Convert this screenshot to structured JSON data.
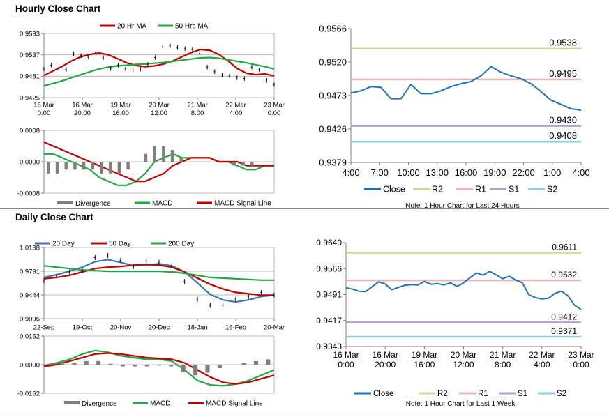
{
  "sections": {
    "hourly_title": "Hourly Close Chart",
    "daily_title": "Daily Close Chart"
  },
  "colors": {
    "ma_short": "#c00000",
    "ma_long": "#21a845",
    "ma_blue": "#3e73b8",
    "close": "#1f72b8",
    "r2": "#c5dc94",
    "r1": "#e9b5b3",
    "s1": "#b1a0c7",
    "s2": "#93cddd",
    "divergence": "#7f7f7f",
    "grid": "#a6a6a6"
  },
  "chart_data": [
    {
      "id": "hourly-price",
      "type": "line",
      "ylim": [
        0.9425,
        0.9593
      ],
      "yticks": [
        "0.9593",
        "0.9537",
        "0.9481",
        "0.9425"
      ],
      "xticks": [
        [
          "16 Mar",
          "0:00"
        ],
        [
          "16 Mar",
          "20:00"
        ],
        [
          "19 Mar",
          "16:00"
        ],
        [
          "20 Mar",
          "12:00"
        ],
        [
          "21 Mar",
          "8:00"
        ],
        [
          "22 Mar",
          "4:00"
        ],
        [
          "23 Mar",
          "0:00"
        ]
      ],
      "legend": [
        "20 Hr MA",
        "50 Hrs MA"
      ],
      "series": [
        {
          "name": "20 Hr MA",
          "color": "ma_short",
          "values": [
            0.9483,
            0.9495,
            0.9507,
            0.9521,
            0.9532,
            0.9538,
            0.9542,
            0.9537,
            0.9527,
            0.9516,
            0.9509,
            0.9506,
            0.9508,
            0.9513,
            0.9521,
            0.9532,
            0.9543,
            0.9551,
            0.9549,
            0.9538,
            0.9521,
            0.9501,
            0.9489,
            0.9485,
            0.9487,
            0.9482
          ]
        },
        {
          "name": "50 Hrs MA",
          "color": "ma_long",
          "values": [
            0.9456,
            0.9462,
            0.9469,
            0.9477,
            0.9485,
            0.9493,
            0.95,
            0.9505,
            0.9508,
            0.951,
            0.9512,
            0.9513,
            0.9515,
            0.9517,
            0.952,
            0.9523,
            0.9526,
            0.9529,
            0.953,
            0.9528,
            0.9524,
            0.952,
            0.9516,
            0.9511,
            0.9506,
            0.95
          ]
        },
        {
          "name": "Close",
          "color": "black",
          "values": [
            0.95,
            0.951,
            0.9501,
            0.9499,
            0.954,
            0.9535,
            0.9531,
            0.9543,
            0.953,
            0.9501,
            0.951,
            0.95,
            0.9497,
            0.95,
            0.9512,
            0.953,
            0.9558,
            0.9561,
            0.9556,
            0.9553,
            0.9551,
            0.9541,
            0.9505,
            0.9493,
            0.9484,
            0.9482,
            0.9477,
            0.9475,
            0.9505,
            0.9498,
            0.947,
            0.9459
          ]
        }
      ]
    },
    {
      "id": "hourly-macd",
      "type": "line",
      "ylim": [
        -0.0008,
        0.0008
      ],
      "yticks": [
        "0.0008",
        "0.0000",
        "-0.0008"
      ],
      "legend": [
        "Divergence",
        "MACD",
        "MACD Signal Line"
      ],
      "series": [
        {
          "name": "MACD",
          "color": "ma_long",
          "values": [
            0.0002,
            0.0002,
            0.0001,
            0.0,
            -0.0001,
            -0.0002,
            -0.0004,
            -0.0005,
            -0.0006,
            -0.0006,
            -0.0005,
            -0.0003,
            0.0,
            0.0001,
            0.0002,
            0.0001,
            0.0001,
            0.0001,
            0.0001,
            0.0,
            0.0,
            -0.0001,
            -0.0002,
            -0.0002,
            -0.0001,
            -0.0001
          ]
        },
        {
          "name": "MACD Signal Line",
          "color": "ma_short",
          "values": [
            0.0005,
            0.0004,
            0.0003,
            0.0002,
            0.0001,
            0.0,
            -0.0001,
            -0.0002,
            -0.0003,
            -0.0004,
            -0.0005,
            -0.0005,
            -0.0004,
            -0.0003,
            -0.0001,
            0.0,
            0.0001,
            0.0001,
            0.0001,
            0.0,
            0.0,
            0.0,
            -0.0001,
            -0.0001,
            -0.0001,
            -0.0001
          ]
        },
        {
          "name": "Divergence",
          "color": "divergence",
          "type": "bar",
          "values": [
            -0.0003,
            -0.0003,
            -0.0002,
            -0.0002,
            -0.0002,
            -0.0002,
            -0.0003,
            -0.0003,
            -0.0003,
            -0.0002,
            0.0,
            0.0002,
            0.0004,
            0.0004,
            0.0003,
            0.0001,
            0.0,
            0.0,
            0.0,
            0.0,
            0.0,
            -0.0001,
            -0.0001,
            -0.0001,
            0.0,
            0.0
          ]
        }
      ]
    },
    {
      "id": "hourly-levels",
      "type": "line",
      "ylim": [
        0.9379,
        0.9566
      ],
      "yticks": [
        "0.9566",
        "0.9520",
        "0.9473",
        "0.9426",
        "0.9379"
      ],
      "xticks": [
        "4:00",
        "7:00",
        "10:00",
        "13:00",
        "16:00",
        "19:00",
        "22:00",
        "1:00",
        "4:00"
      ],
      "levels": {
        "R2": "0.9538",
        "R1": "0.9495",
        "S1": "0.9430",
        "S2": "0.9408"
      },
      "legend": [
        "Close",
        "R2",
        "R1",
        "S1",
        "S2"
      ],
      "note": "Note: 1 Hour Chart for Last 24 Hours",
      "series": [
        {
          "name": "Close",
          "color": "close",
          "values": [
            0.9476,
            0.9479,
            0.9485,
            0.9484,
            0.9468,
            0.9468,
            0.9488,
            0.9475,
            0.9475,
            0.9479,
            0.9485,
            0.9489,
            0.9492,
            0.95,
            0.9513,
            0.9505,
            0.95,
            0.9496,
            0.9489,
            0.9478,
            0.9466,
            0.946,
            0.9454,
            0.9452
          ]
        }
      ]
    },
    {
      "id": "daily-price",
      "type": "line",
      "ylim": [
        0.9096,
        1.0138
      ],
      "yticks": [
        "1.0138",
        "0.9791",
        "0.9444",
        "0.9096"
      ],
      "xticks": [
        "22-Sep",
        "19-Oct",
        "20-Nov",
        "20-Dec",
        "18-Jan",
        "16-Feb",
        "20-Mar"
      ],
      "legend": [
        "20 Day",
        "50 Day",
        "200 Day"
      ],
      "series": [
        {
          "name": "20 Day",
          "color": "ma_blue",
          "values": [
            0.97,
            0.974,
            0.979,
            0.985,
            0.993,
            0.996,
            0.992,
            0.987,
            0.988,
            0.99,
            0.987,
            0.978,
            0.962,
            0.945,
            0.937,
            0.934,
            0.937,
            0.942,
            0.944
          ]
        },
        {
          "name": "50 Day",
          "color": "ma_short",
          "values": [
            0.968,
            0.97,
            0.973,
            0.978,
            0.983,
            0.985,
            0.986,
            0.988,
            0.989,
            0.988,
            0.985,
            0.978,
            0.969,
            0.96,
            0.953,
            0.948,
            0.946,
            0.944,
            0.944
          ]
        },
        {
          "name": "200 Day",
          "color": "ma_long",
          "values": [
            0.987,
            0.985,
            0.983,
            0.981,
            0.98,
            0.979,
            0.979,
            0.979,
            0.979,
            0.979,
            0.978,
            0.976,
            0.973,
            0.97,
            0.969,
            0.968,
            0.967,
            0.966,
            0.966
          ]
        },
        {
          "name": "Close",
          "color": "black",
          "values": [
            0.965,
            0.972,
            0.978,
            0.98,
            0.999,
            1.002,
            0.995,
            0.986,
            0.994,
            0.992,
            0.987,
            0.964,
            0.938,
            0.929,
            0.929,
            0.938,
            0.942,
            0.948,
            0.944
          ]
        }
      ]
    },
    {
      "id": "daily-macd",
      "type": "line",
      "ylim": [
        -0.0162,
        0.0162
      ],
      "yticks": [
        "0.0162",
        "0.0000",
        "-0.0162"
      ],
      "legend": [
        "Divergence",
        "MACD",
        "MACD Signal Line"
      ],
      "series": [
        {
          "name": "MACD",
          "color": "ma_long",
          "values": [
            -0.0005,
            0.001,
            0.003,
            0.006,
            0.008,
            0.007,
            0.005,
            0.004,
            0.003,
            0.003,
            0.002,
            -0.003,
            -0.009,
            -0.0115,
            -0.012,
            -0.011,
            -0.009,
            -0.006,
            -0.003
          ]
        },
        {
          "name": "MACD Signal Line",
          "color": "ma_short",
          "values": [
            -0.001,
            0.0,
            0.002,
            0.004,
            0.006,
            0.0065,
            0.006,
            0.005,
            0.004,
            0.0035,
            0.003,
            0.001,
            -0.003,
            -0.007,
            -0.01,
            -0.011,
            -0.01,
            -0.008,
            -0.006
          ]
        },
        {
          "name": "Divergence",
          "color": "divergence",
          "type": "bar",
          "values": [
            0.0005,
            0.001,
            0.001,
            0.002,
            0.002,
            0.0005,
            -0.001,
            -0.001,
            -0.001,
            -0.0005,
            -0.001,
            -0.004,
            -0.006,
            -0.0045,
            -0.002,
            0.0,
            0.001,
            0.002,
            0.003
          ]
        }
      ]
    },
    {
      "id": "daily-levels",
      "type": "line",
      "ylim": [
        0.9343,
        0.964
      ],
      "yticks": [
        "0.9640",
        "0.9566",
        "0.9491",
        "0.9417",
        "0.9343"
      ],
      "xticks": [
        [
          "16 Mar",
          "0:00"
        ],
        [
          "16 Mar",
          "20:00"
        ],
        [
          "19 Mar",
          "16:00"
        ],
        [
          "20 Mar",
          "12:00"
        ],
        [
          "21 Mar",
          "8:00"
        ],
        [
          "22 Mar",
          "4:00"
        ],
        [
          "23 Mar",
          "0:00"
        ]
      ],
      "levels": {
        "R2": "0.9611",
        "R1": "0.9532",
        "S1": "0.9412",
        "S2": "0.9371"
      },
      "legend": [
        "Close",
        "R2",
        "R1",
        "S1",
        "S2"
      ],
      "note": "Note: 1 Hour Chart for Last 1 Week",
      "series": [
        {
          "name": "Close",
          "color": "close",
          "values": [
            0.9511,
            0.9507,
            0.9501,
            0.95,
            0.9514,
            0.9528,
            0.9522,
            0.9505,
            0.9512,
            0.9518,
            0.952,
            0.9519,
            0.9529,
            0.9521,
            0.9523,
            0.9519,
            0.9525,
            0.9515,
            0.9525,
            0.954,
            0.9553,
            0.9547,
            0.9558,
            0.9548,
            0.9537,
            0.9544,
            0.9533,
            0.9525,
            0.9491,
            0.9483,
            0.9479,
            0.9481,
            0.9495,
            0.9501,
            0.9488,
            0.9461,
            0.9449
          ]
        }
      ]
    }
  ]
}
